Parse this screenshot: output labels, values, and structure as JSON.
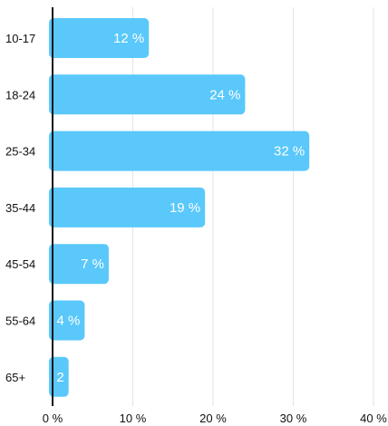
{
  "chart_data": {
    "type": "bar",
    "orientation": "horizontal",
    "categories": [
      "10-17",
      "18-24",
      "25-34",
      "35-44",
      "45-54",
      "55-64",
      "65+"
    ],
    "values": [
      12,
      24,
      32,
      19,
      7,
      4,
      2
    ],
    "data_labels": [
      "12 %",
      "24 %",
      "32 %",
      "19 %",
      "7 %",
      "4 %",
      "2"
    ],
    "x_tick_labels": [
      "0 %",
      "10 %",
      "20 %",
      "30 %",
      "40 %"
    ],
    "x_ticks": [
      0,
      10,
      20,
      30,
      40
    ],
    "xlim": [
      0,
      40
    ],
    "title": "",
    "xlabel": "",
    "ylabel": "",
    "grid": "vertical",
    "bar_color": "#5ac8fa"
  }
}
